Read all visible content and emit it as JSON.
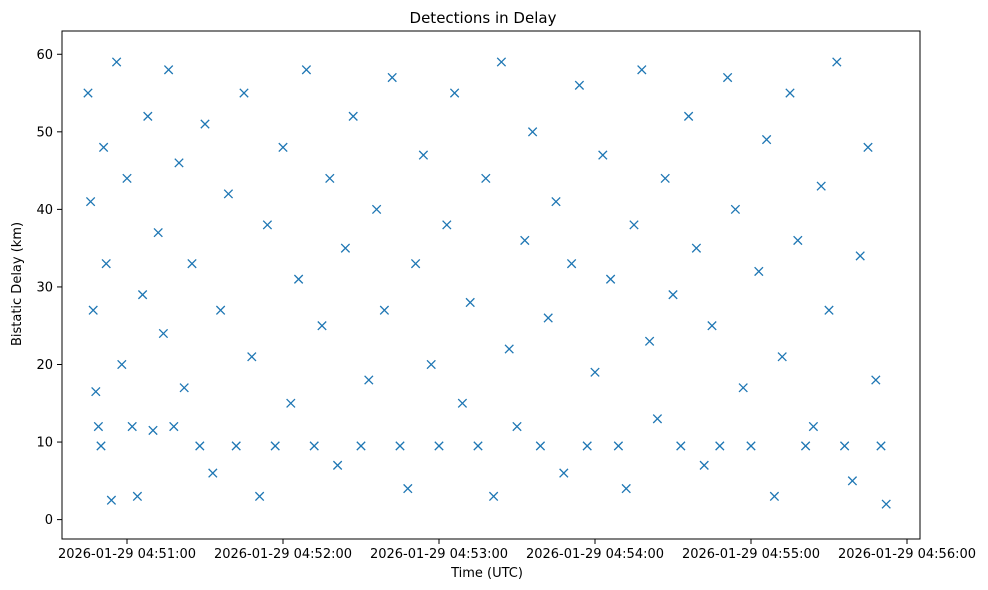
{
  "chart_data": {
    "type": "scatter",
    "title": "Detections in Delay",
    "xlabel": "Time (UTC)",
    "ylabel": "Bistatic Delay (km)",
    "x_ticks": [
      "2026-01-29 04:51:00",
      "2026-01-29 04:52:00",
      "2026-01-29 04:53:00",
      "2026-01-29 04:54:00",
      "2026-01-29 04:55:00",
      "2026-01-29 04:56:00"
    ],
    "y_ticks": [
      "0",
      "10",
      "20",
      "30",
      "40",
      "50",
      "60"
    ],
    "x_range": [
      "2026-01-29 04:50:35",
      "2026-01-29 04:56:05"
    ],
    "ylim": [
      -2.5,
      63
    ],
    "marker": "x",
    "color": "#1f77b4",
    "grid": false,
    "series": [
      {
        "points": [
          [
            "2026-01-29 04:50:45",
            55.0
          ],
          [
            "2026-01-29 04:50:46",
            41.0
          ],
          [
            "2026-01-29 04:50:47",
            27.0
          ],
          [
            "2026-01-29 04:50:48",
            16.5
          ],
          [
            "2026-01-29 04:50:49",
            12.0
          ],
          [
            "2026-01-29 04:50:50",
            9.5
          ],
          [
            "2026-01-29 04:50:51",
            48.0
          ],
          [
            "2026-01-29 04:50:52",
            33.0
          ],
          [
            "2026-01-29 04:50:54",
            2.5
          ],
          [
            "2026-01-29 04:50:56",
            59.0
          ],
          [
            "2026-01-29 04:50:58",
            20.0
          ],
          [
            "2026-01-29 04:51:00",
            44.0
          ],
          [
            "2026-01-29 04:51:02",
            12.0
          ],
          [
            "2026-01-29 04:51:04",
            3.0
          ],
          [
            "2026-01-29 04:51:06",
            29.0
          ],
          [
            "2026-01-29 04:51:08",
            52.0
          ],
          [
            "2026-01-29 04:51:10",
            11.5
          ],
          [
            "2026-01-29 04:51:12",
            37.0
          ],
          [
            "2026-01-29 04:51:14",
            24.0
          ],
          [
            "2026-01-29 04:51:16",
            58.0
          ],
          [
            "2026-01-29 04:51:18",
            12.0
          ],
          [
            "2026-01-29 04:51:20",
            46.0
          ],
          [
            "2026-01-29 04:51:22",
            17.0
          ],
          [
            "2026-01-29 04:51:25",
            33.0
          ],
          [
            "2026-01-29 04:51:28",
            9.5
          ],
          [
            "2026-01-29 04:51:30",
            51.0
          ],
          [
            "2026-01-29 04:51:33",
            6.0
          ],
          [
            "2026-01-29 04:51:36",
            27.0
          ],
          [
            "2026-01-29 04:51:39",
            42.0
          ],
          [
            "2026-01-29 04:51:42",
            9.5
          ],
          [
            "2026-01-29 04:51:45",
            55.0
          ],
          [
            "2026-01-29 04:51:48",
            21.0
          ],
          [
            "2026-01-29 04:51:51",
            3.0
          ],
          [
            "2026-01-29 04:51:54",
            38.0
          ],
          [
            "2026-01-29 04:51:57",
            9.5
          ],
          [
            "2026-01-29 04:52:00",
            48.0
          ],
          [
            "2026-01-29 04:52:03",
            15.0
          ],
          [
            "2026-01-29 04:52:06",
            31.0
          ],
          [
            "2026-01-29 04:52:09",
            58.0
          ],
          [
            "2026-01-29 04:52:12",
            9.5
          ],
          [
            "2026-01-29 04:52:15",
            25.0
          ],
          [
            "2026-01-29 04:52:18",
            44.0
          ],
          [
            "2026-01-29 04:52:21",
            7.0
          ],
          [
            "2026-01-29 04:52:24",
            35.0
          ],
          [
            "2026-01-29 04:52:27",
            52.0
          ],
          [
            "2026-01-29 04:52:30",
            9.5
          ],
          [
            "2026-01-29 04:52:33",
            18.0
          ],
          [
            "2026-01-29 04:52:36",
            40.0
          ],
          [
            "2026-01-29 04:52:39",
            27.0
          ],
          [
            "2026-01-29 04:52:42",
            57.0
          ],
          [
            "2026-01-29 04:52:45",
            9.5
          ],
          [
            "2026-01-29 04:52:48",
            4.0
          ],
          [
            "2026-01-29 04:52:51",
            33.0
          ],
          [
            "2026-01-29 04:52:54",
            47.0
          ],
          [
            "2026-01-29 04:52:57",
            20.0
          ],
          [
            "2026-01-29 04:53:00",
            9.5
          ],
          [
            "2026-01-29 04:53:03",
            38.0
          ],
          [
            "2026-01-29 04:53:06",
            55.0
          ],
          [
            "2026-01-29 04:53:09",
            15.0
          ],
          [
            "2026-01-29 04:53:12",
            28.0
          ],
          [
            "2026-01-29 04:53:15",
            9.5
          ],
          [
            "2026-01-29 04:53:18",
            44.0
          ],
          [
            "2026-01-29 04:53:21",
            3.0
          ],
          [
            "2026-01-29 04:53:24",
            59.0
          ],
          [
            "2026-01-29 04:53:27",
            22.0
          ],
          [
            "2026-01-29 04:53:30",
            12.0
          ],
          [
            "2026-01-29 04:53:33",
            36.0
          ],
          [
            "2026-01-29 04:53:36",
            50.0
          ],
          [
            "2026-01-29 04:53:39",
            9.5
          ],
          [
            "2026-01-29 04:53:42",
            26.0
          ],
          [
            "2026-01-29 04:53:45",
            41.0
          ],
          [
            "2026-01-29 04:53:48",
            6.0
          ],
          [
            "2026-01-29 04:53:51",
            33.0
          ],
          [
            "2026-01-29 04:53:54",
            56.0
          ],
          [
            "2026-01-29 04:53:57",
            9.5
          ],
          [
            "2026-01-29 04:54:00",
            19.0
          ],
          [
            "2026-01-29 04:54:03",
            47.0
          ],
          [
            "2026-01-29 04:54:06",
            31.0
          ],
          [
            "2026-01-29 04:54:09",
            9.5
          ],
          [
            "2026-01-29 04:54:12",
            4.0
          ],
          [
            "2026-01-29 04:54:15",
            38.0
          ],
          [
            "2026-01-29 04:54:18",
            58.0
          ],
          [
            "2026-01-29 04:54:21",
            23.0
          ],
          [
            "2026-01-29 04:54:24",
            13.0
          ],
          [
            "2026-01-29 04:54:27",
            44.0
          ],
          [
            "2026-01-29 04:54:30",
            29.0
          ],
          [
            "2026-01-29 04:54:33",
            9.5
          ],
          [
            "2026-01-29 04:54:36",
            52.0
          ],
          [
            "2026-01-29 04:54:39",
            35.0
          ],
          [
            "2026-01-29 04:54:42",
            7.0
          ],
          [
            "2026-01-29 04:54:45",
            25.0
          ],
          [
            "2026-01-29 04:54:48",
            9.5
          ],
          [
            "2026-01-29 04:54:51",
            57.0
          ],
          [
            "2026-01-29 04:54:54",
            40.0
          ],
          [
            "2026-01-29 04:54:57",
            17.0
          ],
          [
            "2026-01-29 04:55:00",
            9.5
          ],
          [
            "2026-01-29 04:55:03",
            32.0
          ],
          [
            "2026-01-29 04:55:06",
            49.0
          ],
          [
            "2026-01-29 04:55:09",
            3.0
          ],
          [
            "2026-01-29 04:55:12",
            21.0
          ],
          [
            "2026-01-29 04:55:15",
            55.0
          ],
          [
            "2026-01-29 04:55:18",
            36.0
          ],
          [
            "2026-01-29 04:55:21",
            9.5
          ],
          [
            "2026-01-29 04:55:24",
            12.0
          ],
          [
            "2026-01-29 04:55:27",
            43.0
          ],
          [
            "2026-01-29 04:55:30",
            27.0
          ],
          [
            "2026-01-29 04:55:33",
            59.0
          ],
          [
            "2026-01-29 04:55:36",
            9.5
          ],
          [
            "2026-01-29 04:55:39",
            5.0
          ],
          [
            "2026-01-29 04:55:42",
            34.0
          ],
          [
            "2026-01-29 04:55:45",
            48.0
          ],
          [
            "2026-01-29 04:55:48",
            18.0
          ],
          [
            "2026-01-29 04:55:50",
            9.5
          ],
          [
            "2026-01-29 04:55:52",
            2.0
          ]
        ]
      }
    ]
  }
}
